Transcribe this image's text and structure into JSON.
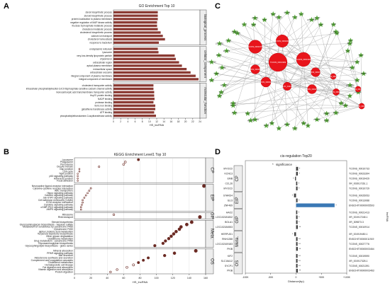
{
  "panels": {
    "a": "A",
    "b": "B",
    "c": "C",
    "d": "D"
  },
  "chart_data": [
    {
      "panel": "A",
      "type": "bar",
      "title": "GO Enrichment Top 10",
      "xlabel": "HS_lncRNA",
      "xlim": [
        0,
        24
      ],
      "xticks": [
        0,
        2,
        4,
        6,
        8,
        10,
        12,
        14,
        16,
        18,
        20,
        22,
        24
      ],
      "bar_color": "#8b3a33",
      "groups": [
        {
          "name": "biological_process",
          "items": [
            {
              "label": "sterol biosynthetic process",
              "value": 12.3
            },
            {
              "label": "steroid biosynthetic process",
              "value": 12.3
            },
            {
              "label": "protein localization to plasma membrane",
              "value": 12.3
            },
            {
              "label": "negative regulation of MAP kinase activity",
              "value": 12.1
            },
            {
              "label": "fructose 6-phosphate metabolic process",
              "value": 12.1
            },
            {
              "label": "cholesterol metabolic process",
              "value": 12.3
            },
            {
              "label": "cholesterol biosynthetic process",
              "value": 13.1
            },
            {
              "label": "calcium ion transport",
              "value": 13.7
            },
            {
              "label": "cholesterol homeostasis",
              "value": 14.3
            },
            {
              "label": "response to bacterium",
              "value": 12.6
            }
          ]
        },
        {
          "name": "cellular_component",
          "items": [
            {
              "label": "endoplasmic reticulum",
              "value": 12.3
            },
            {
              "label": "lysosome",
              "value": 12.5
            },
            {
              "label": "very-low-density lipoprotein particle",
              "value": 17.0
            },
            {
              "label": "chylomicron",
              "value": 17.3
            },
            {
              "label": "extracellular region",
              "value": 18.2
            },
            {
              "label": "apical plasma membrane",
              "value": 19.0
            },
            {
              "label": "extracellular space",
              "value": 20.3
            },
            {
              "label": "extracellular exosome",
              "value": 21.4
            },
            {
              "label": "integral component of plasma membrane",
              "value": 22.8
            },
            {
              "label": "integral component of membrane",
              "value": 23.6
            }
          ]
        },
        {
          "name": "molecular_function",
          "items": [
            {
              "label": "cholesterol transporter activity",
              "value": 11.1
            },
            {
              "label": "intracellular phosphatidylinositol-3,4,5-trisphosphate-sensitive calcium channel activity",
              "value": 11.1
            },
            {
              "label": "monocarboxylic acid transmembrane transporter activity",
              "value": 11.3
            },
            {
              "label": "Hsp70 protein binding",
              "value": 11.3
            },
            {
              "label": "NADP binding",
              "value": 11.4
            },
            {
              "label": "protease binding",
              "value": 11.1
            },
            {
              "label": "ferric iron binding",
              "value": 11.6
            },
            {
              "label": "glutathione transferase activity",
              "value": 11.6
            },
            {
              "label": "ATP binding",
              "value": 11.3
            },
            {
              "label": "phosphatidylethanolamine-3-acyltransferase activity",
              "value": 11.8
            }
          ]
        }
      ]
    },
    {
      "panel": "B",
      "type": "scatter",
      "title": "KEGG Enrichment Level1 Top 10",
      "xlabel": "HS_lncRNA",
      "xlim": [
        0,
        160
      ],
      "xticks": [
        0,
        20,
        40,
        60,
        80,
        100,
        120,
        140,
        160
      ],
      "groups": [
        {
          "name": "CP",
          "items": [
            {
              "label": "Lysosome",
              "value": 78
            },
            {
              "label": "Phagosome",
              "value": 62
            },
            {
              "label": "Peroxisome",
              "value": 60
            },
            {
              "label": "Oocyte meiosis",
              "value": 30
            },
            {
              "label": "Gap junction",
              "value": 6
            },
            {
              "label": "Cell cycle",
              "value": 6
            },
            {
              "label": "Tight junction",
              "value": 4
            },
            {
              "label": "p53 signaling pathway",
              "value": 4
            },
            {
              "label": "Adherens junction",
              "value": 4
            },
            {
              "label": "Focal adhesion",
              "value": 4
            }
          ]
        },
        {
          "name": "EIP",
          "items": [
            {
              "label": "Neuroactive ligand-receptor interaction",
              "value": 158
            },
            {
              "label": "Cytokine-cytokine receptor interaction",
              "value": 20
            },
            {
              "label": "ABC transporters",
              "value": 18
            },
            {
              "label": "Hippo signaling pathway",
              "value": 16
            },
            {
              "label": "Calcium signaling pathway",
              "value": 14
            },
            {
              "label": "Jak-STAT signaling pathway",
              "value": 12
            },
            {
              "label": "Cell adhesion molecules (CAMs)",
              "value": 10
            },
            {
              "label": "ECM-receptor interaction",
              "value": 10
            },
            {
              "label": "Cytokine signaling pathway",
              "value": 9
            },
            {
              "label": "cGMP-PKG signaling pathway",
              "value": 8
            },
            {
              "label": "AMPK signaling pathway",
              "value": 8
            }
          ]
        },
        {
          "name": "GIP",
          "items": [
            {
              "label": "Ribosome",
              "value": 48
            },
            {
              "label": "RNA transport",
              "value": 153
            }
          ]
        },
        {
          "name": "Meta.",
          "items": [
            {
              "label": "Steroid biosynthesis",
              "value": 143
            },
            {
              "label": "Glycosaminoglycan biosynthesis - heparan sulfate",
              "value": 137
            },
            {
              "label": "Metabolism of xenobiotics by cytochrome P450",
              "value": 130
            },
            {
              "label": "Cytochrome P450",
              "value": 128
            },
            {
              "label": "alpha-Linolenic acid metabolism",
              "value": 124
            },
            {
              "label": "Terpenoid backbone biosynthesis",
              "value": 121
            },
            {
              "label": "Other glycan degradation",
              "value": 118
            },
            {
              "label": "Glutathione metabolism",
              "value": 115
            },
            {
              "label": "Drug metabolism - cytochrome P450",
              "value": 111
            },
            {
              "label": "Glycosaminoglycan biosynthesis",
              "value": 108
            },
            {
              "label": "Glycosphingolipid biosynthesis - globo series",
              "value": 98
            }
          ]
        },
        {
          "name": "OS",
          "items": [
            {
              "label": "Mineral absorption",
              "value": 148
            },
            {
              "label": "PPAR signaling pathway",
              "value": 122
            },
            {
              "label": "Bile secretion",
              "value": 110
            },
            {
              "label": "Aldosterone synthesis and secretion",
              "value": 90
            },
            {
              "label": "Complement and coagulation cascades",
              "value": 84
            },
            {
              "label": "Cholesterol metabolism",
              "value": 78
            },
            {
              "label": "Hematopoietic cell lineage",
              "value": 72
            },
            {
              "label": "Fat digestion and absorption",
              "value": 64
            },
            {
              "label": "Vitamin digestion and absorption",
              "value": 52
            },
            {
              "label": "Protein digestion",
              "value": 44
            }
          ]
        }
      ]
    },
    {
      "panel": "C",
      "type": "network",
      "hubs": [
        {
          "label": "TCONS_00016770",
          "size": 16
        },
        {
          "label": "TCONS_00013399",
          "size": 22
        },
        {
          "label": "TCONS_00013294",
          "size": 17
        },
        {
          "label": "TCONS_00010000",
          "size": 15
        },
        {
          "label": "TCONS_00004434",
          "size": 12
        },
        {
          "label": "XLOC_010148",
          "size": 10
        },
        {
          "label": "TCONS_00027733",
          "size": 11
        },
        {
          "label": "TCONS_00015008",
          "size": 11
        },
        {
          "label": "TCONS_00017718",
          "size": 11
        },
        {
          "label": "TCONS_00019018",
          "size": 8
        },
        {
          "label": "TCONS_00010047",
          "size": 7
        },
        {
          "label": "TCONS_00008391",
          "size": 7
        },
        {
          "label": "TCONS_00012880",
          "size": 7
        }
      ],
      "targets": [
        "SLC8A1",
        "TCF21",
        "PLD1",
        "LOC103476",
        "LOC107",
        "AGRP",
        "LEPR",
        "PPARD",
        "SCD",
        "LRP5",
        "EIF4G",
        "TLR4",
        "AGR2",
        "CD36",
        "ACSL1",
        "FABP4",
        "VAV3",
        "LOC12088",
        "APOA4",
        "LPL",
        "MTTP",
        "FASN",
        "ACACA",
        "SREBF1",
        "INSIG1",
        "HMGCR",
        "IDI1",
        "SQLE",
        "CYP51",
        "DHCR7",
        "LSS",
        "MVK",
        "FDFT1",
        "LOC1023",
        "HSD17B",
        "NPC1",
        "ABCA1",
        "ABCG5",
        "PCSK9",
        "LDLR",
        "APOB",
        "ANGPTL4",
        "PLIN2",
        "CIDEA",
        "LOC1083",
        "TCONS_00",
        "DGAT2",
        "ELOVL6",
        "LOC10321",
        "CPT1A",
        "ACOX1",
        "PPARA",
        "LOC5",
        "GPAM",
        "AGPAT2",
        "LPIN1",
        "SCAP",
        "MBTPS1"
      ],
      "hub_color": "#e8141b",
      "target_color": "#5cb83a"
    },
    {
      "panel": "D",
      "type": "bar",
      "title": "cis-regulation Top20",
      "legend_label": "significance",
      "xlabel": "Distance(bp)",
      "ylabel_right": "lncRNA",
      "xlim": [
        -100000,
        100000
      ],
      "xticks": [
        "-100K",
        "-50K",
        "0",
        "+50K",
        "+100K"
      ],
      "groups": [
        {
          "name": "CP",
          "rows": [
            {
              "gene": "MYOCD",
              "lncrna": "TCONS_00010733",
              "distance": 4000,
              "sig": "*"
            },
            {
              "gene": "KCNC3",
              "lncrna": "TCONS_00023394",
              "distance": 3500,
              "sig": "*"
            },
            {
              "gene": "EMB",
              "lncrna": "TCONS_00019429",
              "distance": -2000,
              "sig": "*"
            },
            {
              "gene": "CCL26",
              "lncrna": "XR_003917261.1",
              "distance": 2500,
              "sig": "*"
            },
            {
              "gene": "MYOCD",
              "lncrna": "TCONS_00010729",
              "distance": 3000,
              "sig": "*"
            }
          ]
        },
        {
          "name": "EIP",
          "rows": [
            {
              "gene": "STARD4",
              "lncrna": "TCONS_00025053",
              "distance": -4000,
              "sig": "*"
            },
            {
              "gene": "GLI3",
              "lncrna": "TCONS_00013088",
              "distance": 3000,
              "sig": "*"
            },
            {
              "gene": "ZNF469",
              "lncrna": "ENSCHIT00000005503",
              "distance": 76000,
              "sig": "*"
            }
          ]
        },
        {
          "name": "GIP",
          "rows": [
            {
              "gene": "HAO2",
              "lncrna": "TCONS_00021413",
              "distance": 2500,
              "sig": "*"
            },
            {
              "gene": "LOC102181832",
              "lncrna": "XR_001917248.1",
              "distance": 3000,
              "sig": "*"
            },
            {
              "gene": "BOLA1",
              "lncrna": "XR_309873.3",
              "distance": 3000,
              "sig": "*"
            },
            {
              "gene": "LOC102184553",
              "lncrna": "TCONS_00010914",
              "distance": 3500,
              "sig": "**"
            }
          ]
        },
        {
          "name": "Meta.",
          "rows": [
            {
              "gene": "HERPUD1",
              "lncrna": "XR_001919450.1",
              "distance": -3500,
              "sig": "*"
            },
            {
              "gene": "RNH1288",
              "lncrna": "ENSCHIT00000011919",
              "distance": 3000,
              "sig": "**"
            },
            {
              "gene": "LOC102169183",
              "lncrna": "TCONS_00027776",
              "distance": 3000,
              "sig": "**"
            },
            {
              "gene": "PKIB",
              "lncrna": "ENSCHIT00000003464",
              "distance": 3500,
              "sig": "**"
            }
          ]
        },
        {
          "name": "OS",
          "rows": [
            {
              "gene": "KIF2",
              "lncrna": "TCONS_00019590",
              "distance": 3000,
              "sig": "**"
            },
            {
              "gene": "SLC16A12",
              "lncrna": "XR_001917328.1",
              "distance": 3000,
              "sig": "**"
            },
            {
              "gene": "SYCP1",
              "lncrna": "TCONS_00021391",
              "distance": 3000,
              "sig": "**"
            },
            {
              "gene": "PKIB",
              "lncrna": "ENSCHIT00000003463",
              "distance": 3500,
              "sig": "**"
            }
          ]
        }
      ]
    }
  ]
}
